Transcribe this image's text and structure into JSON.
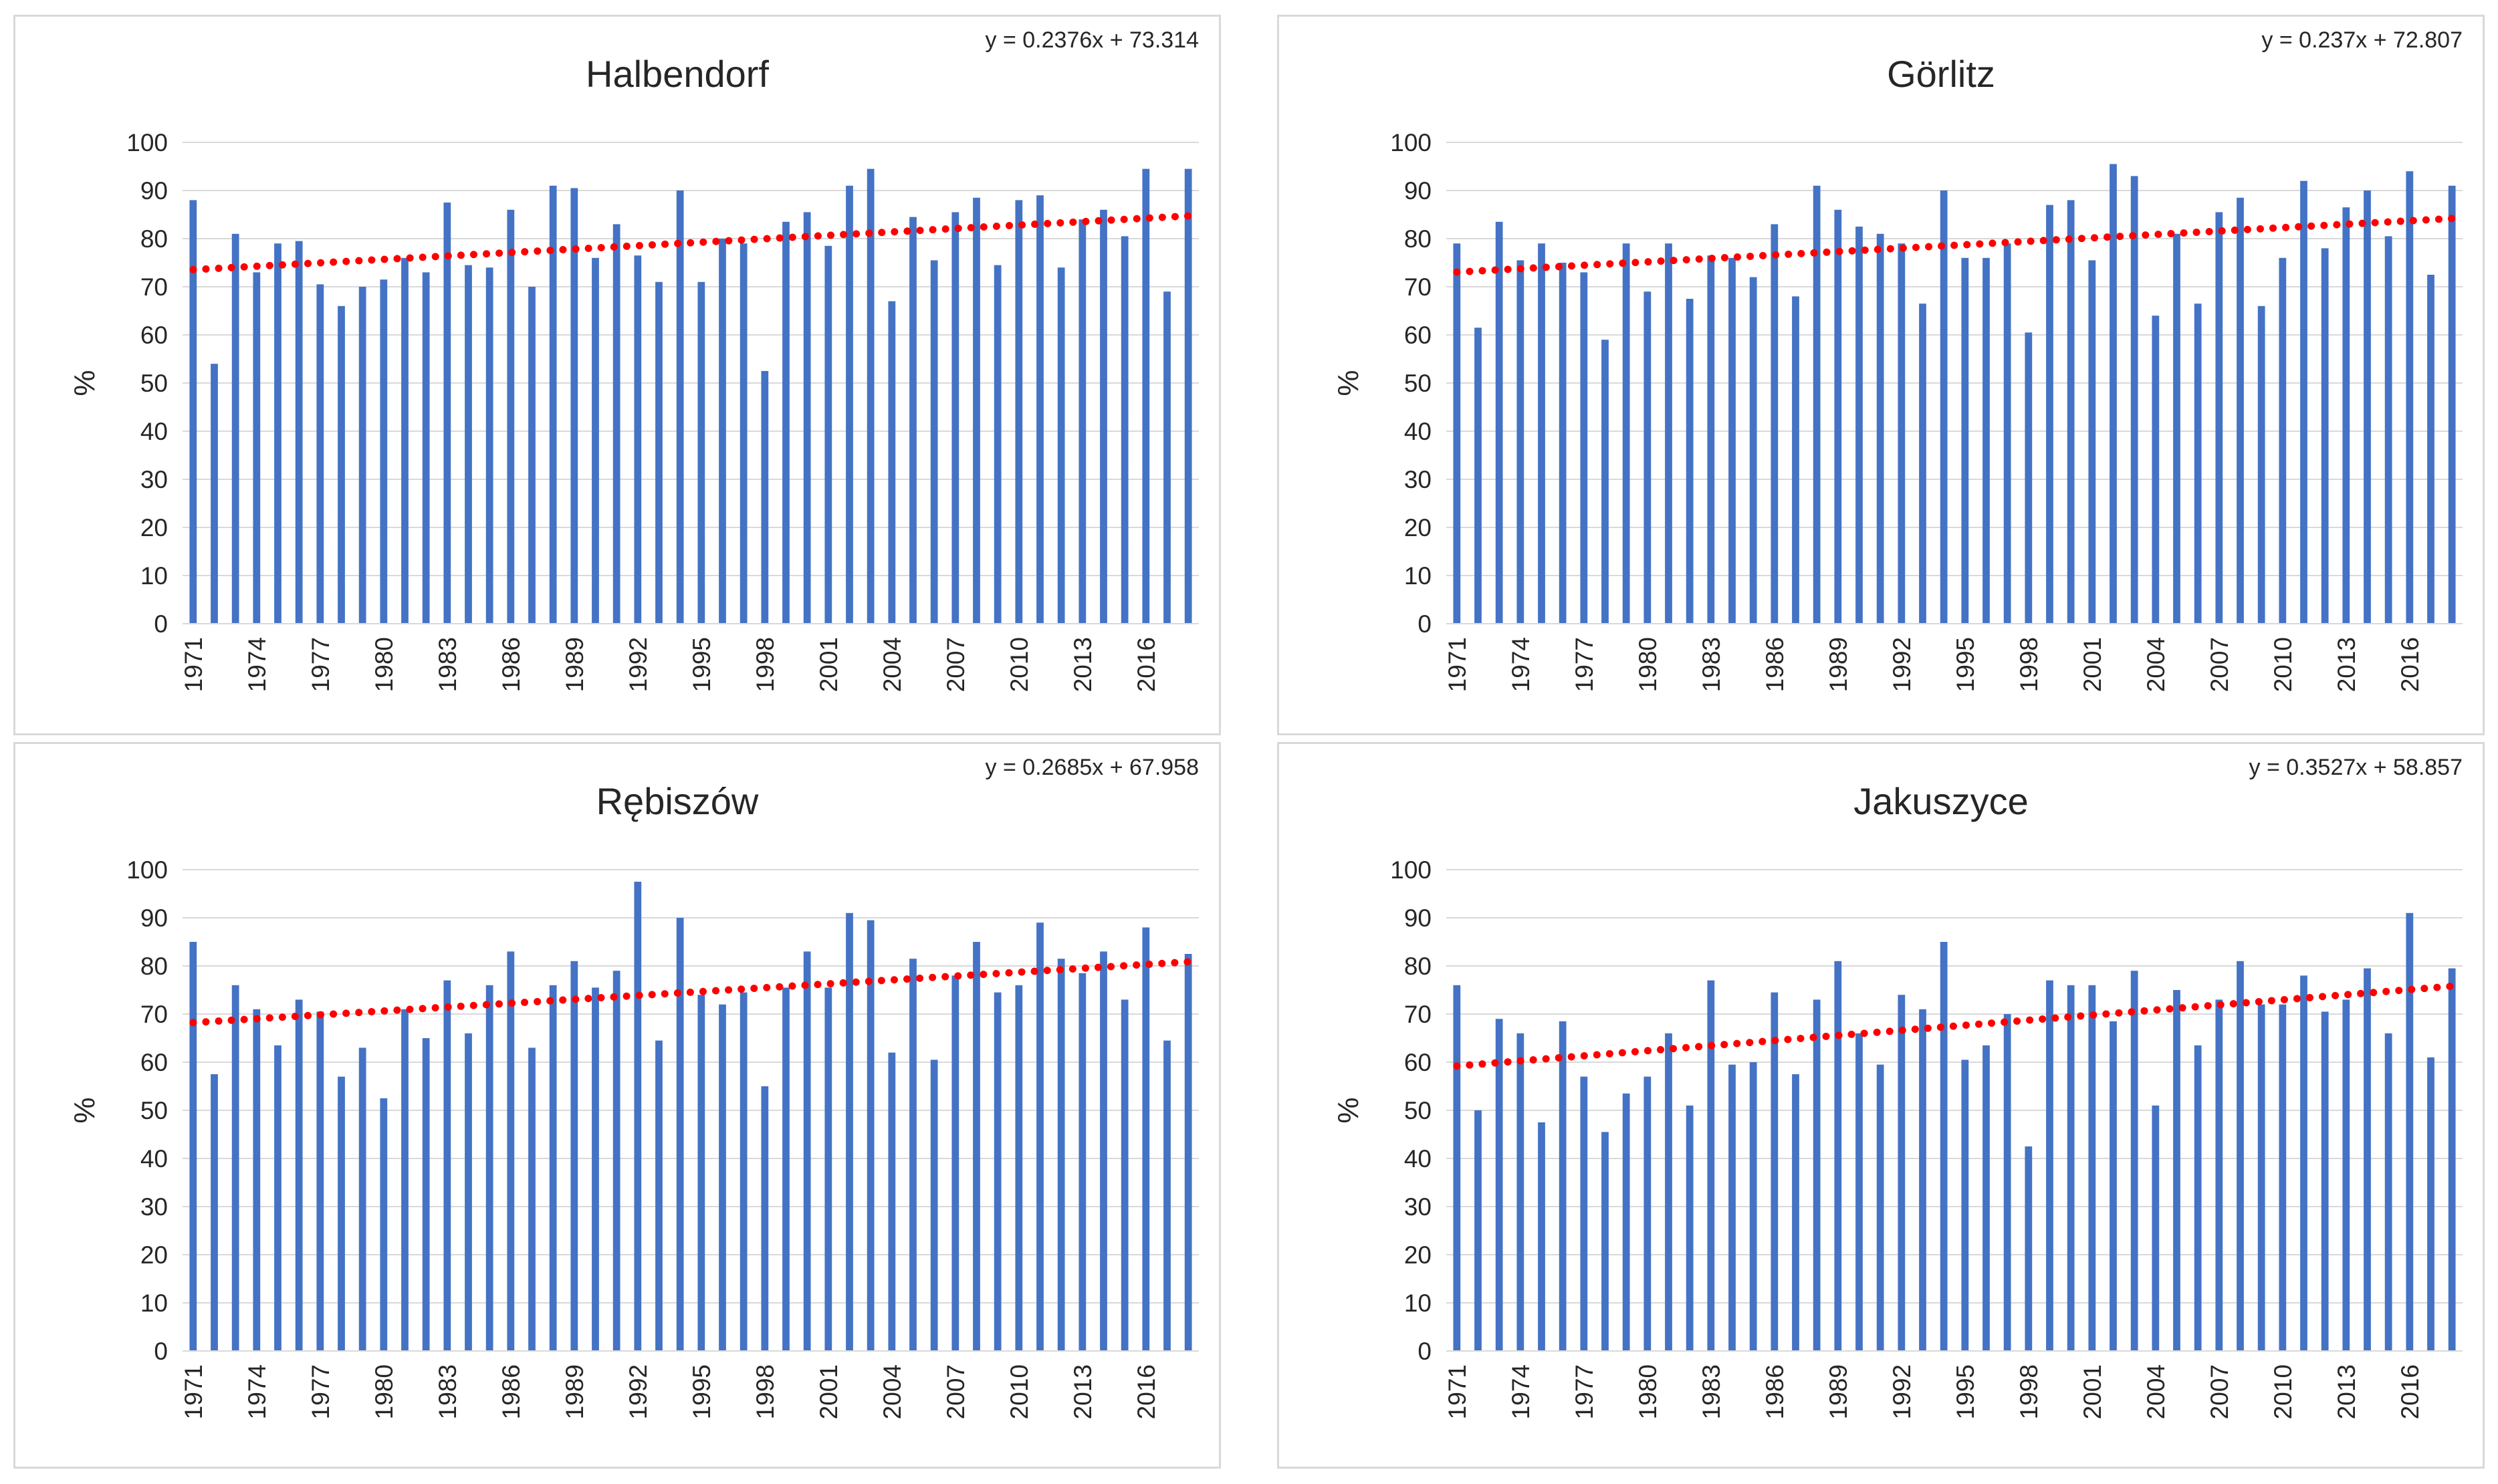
{
  "colors": {
    "bar": "#4472c4",
    "trend": "#ff0000",
    "grid": "#d9d9d9",
    "text": "#262626"
  },
  "chart_data": [
    {
      "type": "bar",
      "title": "Halbendorf",
      "equation": "y = 0.2376x + 73.314",
      "ylabel": "%",
      "ylim": [
        0,
        100
      ],
      "yticks": [
        0,
        10,
        20,
        30,
        40,
        50,
        60,
        70,
        80,
        90,
        100
      ],
      "xtick_labels": [
        "1971",
        "1974",
        "1977",
        "1980",
        "1983",
        "1986",
        "1989",
        "1992",
        "1995",
        "1998",
        "2001",
        "2004",
        "2007",
        "2010",
        "2013",
        "2016"
      ],
      "grid": true,
      "trendline": {
        "type": "linear",
        "slope": 0.2376,
        "intercept": 73.314
      },
      "categories": [
        "1971",
        "1972",
        "1973",
        "1974",
        "1975",
        "1976",
        "1977",
        "1978",
        "1979",
        "1980",
        "1981",
        "1982",
        "1983",
        "1984",
        "1985",
        "1986",
        "1987",
        "1988",
        "1989",
        "1990",
        "1991",
        "1992",
        "1993",
        "1994",
        "1995",
        "1996",
        "1997",
        "1998",
        "1999",
        "2000",
        "2001",
        "2002",
        "2003",
        "2004",
        "2005",
        "2006",
        "2007",
        "2008",
        "2009",
        "2010",
        "2011",
        "2012",
        "2013",
        "2014",
        "2015",
        "2016",
        "2017",
        "2018"
      ],
      "values": [
        88,
        54,
        81,
        73,
        79,
        79.5,
        70.5,
        66,
        70,
        71.5,
        76,
        73,
        87.5,
        74.5,
        74,
        86,
        70,
        91,
        90.5,
        76,
        83,
        76.5,
        71,
        90,
        71,
        80,
        79,
        52.5,
        83.5,
        85.5,
        78.5,
        91,
        94.5,
        67,
        84.5,
        75.5,
        85.5,
        88.5,
        74.5,
        88,
        89,
        74,
        84,
        86,
        80.5,
        94.5,
        69,
        94.5
      ]
    },
    {
      "type": "bar",
      "title": "Görlitz",
      "equation": "y = 0.237x + 72.807",
      "ylabel": "%",
      "ylim": [
        0,
        100
      ],
      "yticks": [
        0,
        10,
        20,
        30,
        40,
        50,
        60,
        70,
        80,
        90,
        100
      ],
      "xtick_labels": [
        "1971",
        "1974",
        "1977",
        "1980",
        "1983",
        "1986",
        "1989",
        "1992",
        "1995",
        "1998",
        "2001",
        "2004",
        "2007",
        "2010",
        "2013",
        "2016"
      ],
      "grid": true,
      "trendline": {
        "type": "linear",
        "slope": 0.237,
        "intercept": 72.807
      },
      "categories": [
        "1971",
        "1972",
        "1973",
        "1974",
        "1975",
        "1976",
        "1977",
        "1978",
        "1979",
        "1980",
        "1981",
        "1982",
        "1983",
        "1984",
        "1985",
        "1986",
        "1987",
        "1988",
        "1989",
        "1990",
        "1991",
        "1992",
        "1993",
        "1994",
        "1995",
        "1996",
        "1997",
        "1998",
        "1999",
        "2000",
        "2001",
        "2002",
        "2003",
        "2004",
        "2005",
        "2006",
        "2007",
        "2008",
        "2009",
        "2010",
        "2011",
        "2012",
        "2013",
        "2014",
        "2015",
        "2016",
        "2017",
        "2018"
      ],
      "values": [
        79,
        61.5,
        83.5,
        75.5,
        79,
        75,
        73,
        59,
        79,
        69,
        79,
        67.5,
        76.5,
        76,
        72,
        83,
        68,
        91,
        86,
        82.5,
        81,
        79,
        66.5,
        90,
        76,
        76,
        79,
        60.5,
        87,
        88,
        75.5,
        95.5,
        93,
        64,
        81,
        66.5,
        85.5,
        88.5,
        66,
        76,
        92,
        78,
        86.5,
        90,
        80.5,
        94,
        72.5,
        91
      ]
    },
    {
      "type": "bar",
      "title": "Rębiszów",
      "equation": "y = 0.2685x + 67.958",
      "ylabel": "%",
      "ylim": [
        0,
        100
      ],
      "yticks": [
        0,
        10,
        20,
        30,
        40,
        50,
        60,
        70,
        80,
        90,
        100
      ],
      "xtick_labels": [
        "1971",
        "1974",
        "1977",
        "1980",
        "1983",
        "1986",
        "1989",
        "1992",
        "1995",
        "1998",
        "2001",
        "2004",
        "2007",
        "2010",
        "2013",
        "2016"
      ],
      "grid": true,
      "trendline": {
        "type": "linear",
        "slope": 0.2685,
        "intercept": 67.958
      },
      "categories": [
        "1971",
        "1972",
        "1973",
        "1974",
        "1975",
        "1976",
        "1977",
        "1978",
        "1979",
        "1980",
        "1981",
        "1982",
        "1983",
        "1984",
        "1985",
        "1986",
        "1987",
        "1988",
        "1989",
        "1990",
        "1991",
        "1992",
        "1993",
        "1994",
        "1995",
        "1996",
        "1997",
        "1998",
        "1999",
        "2000",
        "2001",
        "2002",
        "2003",
        "2004",
        "2005",
        "2006",
        "2007",
        "2008",
        "2009",
        "2010",
        "2011",
        "2012",
        "2013",
        "2014",
        "2015",
        "2016",
        "2017",
        "2018"
      ],
      "values": [
        85,
        57.5,
        76,
        71,
        63.5,
        73,
        70.5,
        57,
        63,
        52.5,
        71,
        65,
        77,
        66,
        76,
        83,
        63,
        76,
        81,
        75.5,
        79,
        97.5,
        64.5,
        90,
        74,
        72,
        74.5,
        55,
        75.5,
        83,
        75.5,
        91,
        89.5,
        62,
        81.5,
        60.5,
        78,
        85,
        74.5,
        76,
        89,
        81.5,
        78.5,
        83,
        73,
        88,
        64.5,
        82.5
      ]
    },
    {
      "type": "bar",
      "title": "Jakuszyce",
      "equation": "y = 0.3527x + 58.857",
      "ylabel": "%",
      "ylim": [
        0,
        100
      ],
      "yticks": [
        0,
        10,
        20,
        30,
        40,
        50,
        60,
        70,
        80,
        90,
        100
      ],
      "xtick_labels": [
        "1971",
        "1974",
        "1977",
        "1980",
        "1983",
        "1986",
        "1989",
        "1992",
        "1995",
        "1998",
        "2001",
        "2004",
        "2007",
        "2010",
        "2013",
        "2016"
      ],
      "grid": true,
      "trendline": {
        "type": "linear",
        "slope": 0.3527,
        "intercept": 58.857
      },
      "categories": [
        "1971",
        "1972",
        "1973",
        "1974",
        "1975",
        "1976",
        "1977",
        "1978",
        "1979",
        "1980",
        "1981",
        "1982",
        "1983",
        "1984",
        "1985",
        "1986",
        "1987",
        "1988",
        "1989",
        "1990",
        "1991",
        "1992",
        "1993",
        "1994",
        "1995",
        "1996",
        "1997",
        "1998",
        "1999",
        "2000",
        "2001",
        "2002",
        "2003",
        "2004",
        "2005",
        "2006",
        "2007",
        "2008",
        "2009",
        "2010",
        "2011",
        "2012",
        "2013",
        "2014",
        "2015",
        "2016",
        "2017",
        "2018"
      ],
      "values": [
        76,
        50,
        69,
        66,
        47.5,
        68.5,
        57,
        45.5,
        53.5,
        57,
        66,
        51,
        77,
        59.5,
        60,
        74.5,
        57.5,
        73,
        81,
        66,
        59.5,
        74,
        71,
        85,
        60.5,
        63.5,
        70,
        42.5,
        77,
        76,
        76,
        68.5,
        79,
        51,
        75,
        63.5,
        73,
        81,
        72,
        72,
        78,
        70.5,
        73,
        79.5,
        66,
        91,
        61,
        79.5
      ]
    }
  ]
}
